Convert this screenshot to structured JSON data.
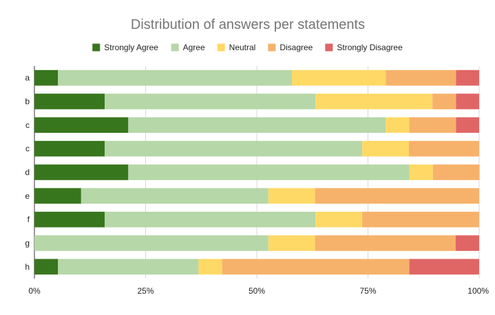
{
  "chart_data": {
    "type": "bar",
    "orientation": "horizontal",
    "stacking": "percent",
    "title": "Distribution of answers per statements",
    "xlabel": "",
    "ylabel": "",
    "xlim": [
      0,
      100
    ],
    "x_ticks": [
      "0%",
      "25%",
      "50%",
      "75%",
      "100%"
    ],
    "grid": true,
    "legend_position": "top",
    "categories": [
      "a",
      "b",
      "c",
      "c",
      "d",
      "e",
      "f",
      "g",
      "h"
    ],
    "series": [
      {
        "name": "Strongly Agree",
        "color": "#38761d",
        "values": [
          5.3,
          15.8,
          21.1,
          15.8,
          21.1,
          10.5,
          15.8,
          0,
          5.3
        ]
      },
      {
        "name": "Agree",
        "color": "#b6d7a8",
        "values": [
          52.6,
          47.4,
          57.9,
          57.9,
          63.2,
          42.1,
          47.4,
          52.6,
          31.6
        ]
      },
      {
        "name": "Neutral",
        "color": "#ffd966",
        "values": [
          21.1,
          26.3,
          5.3,
          10.5,
          5.3,
          10.5,
          10.5,
          10.5,
          5.3
        ]
      },
      {
        "name": "Disagree",
        "color": "#f6b26b",
        "values": [
          15.8,
          5.3,
          10.5,
          15.8,
          10.5,
          36.9,
          26.3,
          31.6,
          42.1
        ]
      },
      {
        "name": "Strongly Disagree",
        "color": "#e06666",
        "values": [
          5.2,
          5.2,
          5.2,
          0,
          0,
          0,
          0,
          5.3,
          15.7
        ]
      }
    ]
  }
}
